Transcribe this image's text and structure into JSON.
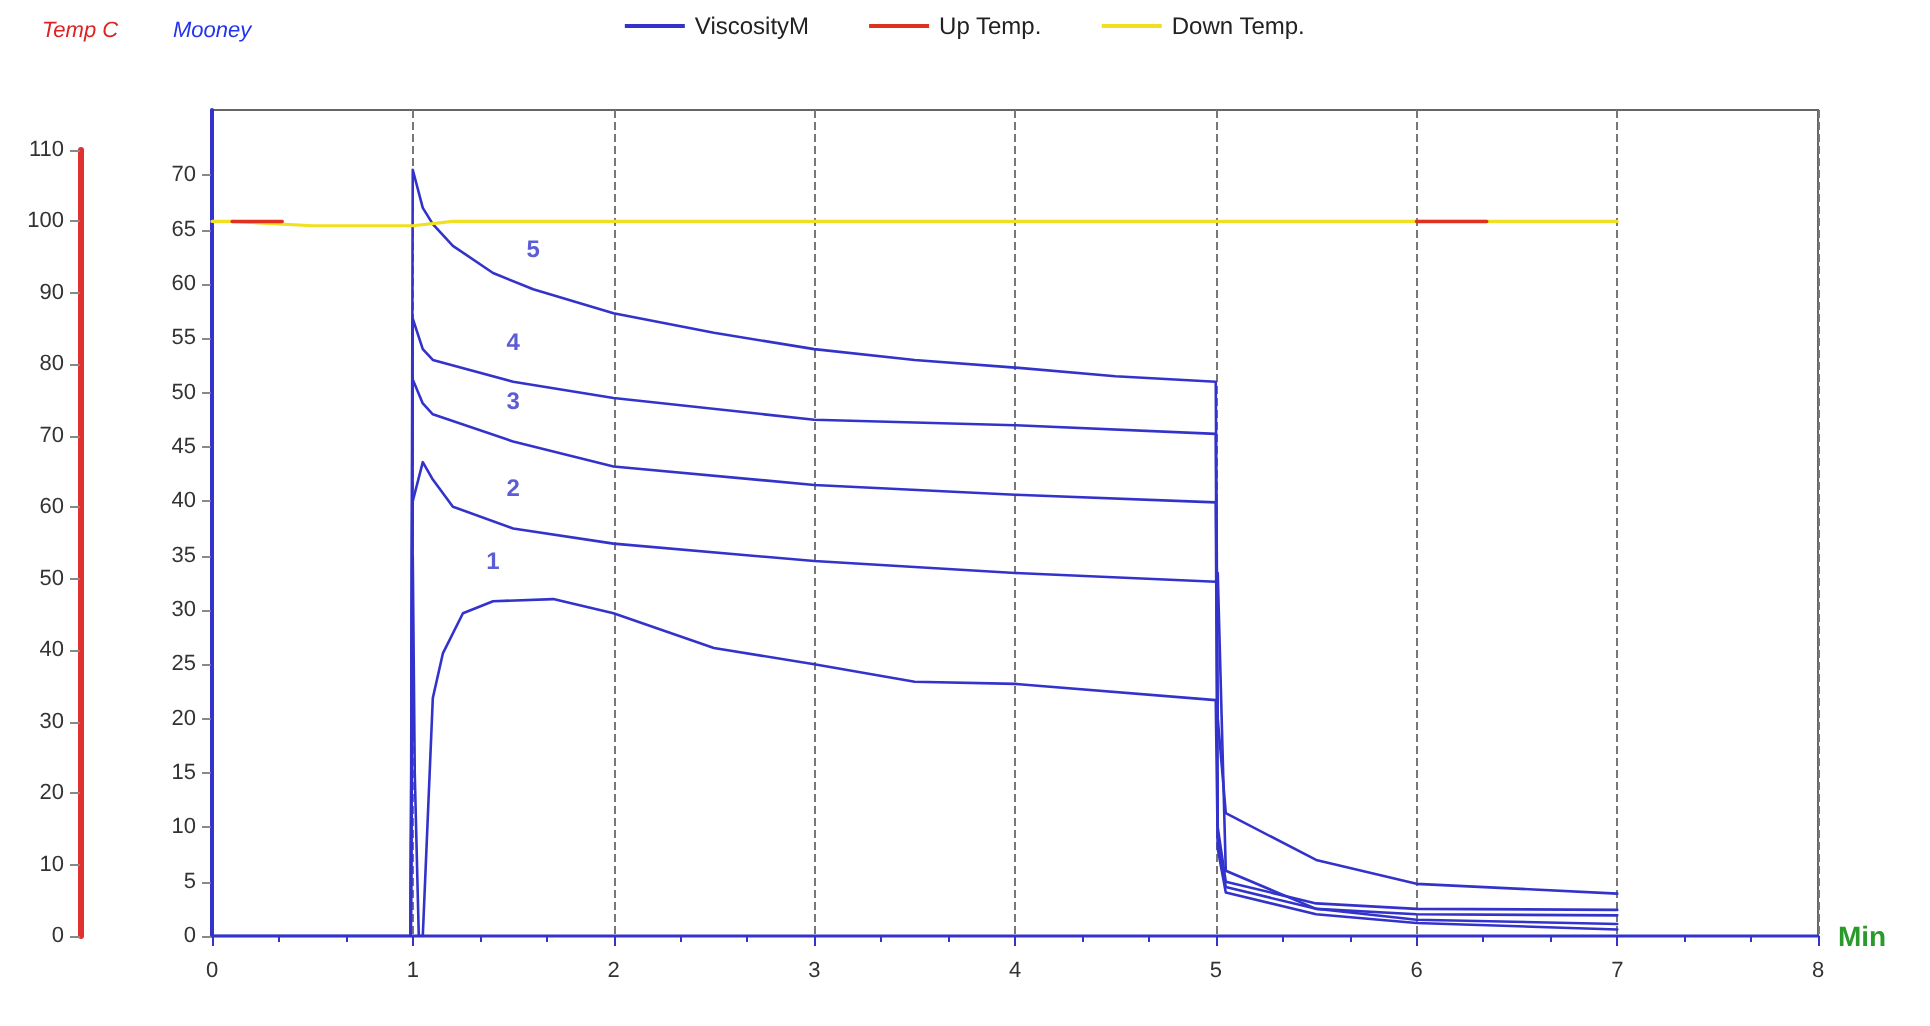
{
  "chart_data": {
    "type": "line",
    "xlabel": "Min",
    "ylabel": "Mooney",
    "y2label": "Temp C",
    "xlim": [
      0,
      8
    ],
    "xticks": [
      0,
      1,
      2,
      3,
      4,
      5,
      6,
      7,
      8
    ],
    "ylim": [
      0,
      76
    ],
    "yticks": [
      0,
      5,
      10,
      15,
      20,
      25,
      30,
      35,
      40,
      45,
      50,
      55,
      60,
      65,
      70
    ],
    "y2lim": [
      0,
      110
    ],
    "y2ticks": [
      0,
      10,
      20,
      30,
      40,
      50,
      60,
      70,
      80,
      90,
      100,
      110
    ],
    "grid": "x",
    "legend": "top",
    "marker": "none",
    "line_style": "solid",
    "annotations": [
      {
        "text": "5",
        "x": 1.6,
        "y": 59.5
      },
      {
        "text": "4",
        "x": 1.5,
        "y": 51
      },
      {
        "text": "3",
        "x": 1.5,
        "y": 45.5
      },
      {
        "text": "2",
        "x": 1.5,
        "y": 37.5
      },
      {
        "text": "1",
        "x": 1.4,
        "y": 30.8
      }
    ],
    "series": [
      {
        "name": "ViscosityM",
        "color": "#3333cc",
        "x": [
          0,
          0,
          0.99,
          1.0,
          1.05,
          1.1,
          1.2,
          1.4,
          1.6,
          2.0,
          2.5,
          3.0,
          3.5,
          4.0,
          4.5,
          5.0,
          5.01,
          5.05,
          5.5,
          6.0,
          7.0
        ],
        "values": [
          73,
          0,
          0,
          70.5,
          67,
          65.5,
          63.5,
          61,
          59.5,
          57.3,
          55.5,
          54,
          53,
          52.3,
          51.5,
          51,
          20,
          11.3,
          7,
          4.8,
          3.9
        ]
      },
      {
        "color": "#3333cc",
        "x": [
          0.99,
          1.0,
          1.05,
          1.1,
          1.5,
          2.0,
          3.0,
          4.0,
          5.0,
          5.01,
          5.05,
          5.5,
          6.0,
          7.0
        ],
        "values": [
          0,
          56.8,
          54,
          53,
          51,
          49.5,
          47.5,
          47,
          46.2,
          10,
          5,
          3,
          2.5,
          2.4
        ]
      },
      {
        "color": "#3333cc",
        "x": [
          0.99,
          1.0,
          1.05,
          1.1,
          1.5,
          2.0,
          3.0,
          4.0,
          5.0,
          5.01,
          5.05,
          5.5,
          6.0,
          7.0
        ],
        "values": [
          0,
          51.2,
          49,
          48,
          45.5,
          43.2,
          41.5,
          40.6,
          39.9,
          9,
          4.5,
          2.5,
          2,
          1.9
        ]
      },
      {
        "color": "#3333cc",
        "x": [
          0.99,
          1.0,
          1.05,
          1.1,
          1.2,
          1.5,
          2.0,
          3.0,
          4.0,
          5.0,
          5.01,
          5.05,
          5.5,
          6.0,
          7.0
        ],
        "values": [
          0,
          40,
          43.6,
          42,
          39.5,
          37.5,
          36.1,
          34.5,
          33.4,
          32.6,
          33.4,
          6,
          2.5,
          1.5,
          1.1
        ]
      },
      {
        "color": "#3333cc",
        "x": [
          0.99,
          1.0,
          1.01,
          1.03,
          1.05,
          1.1,
          1.15,
          1.25,
          1.4,
          1.7,
          2.0,
          2.5,
          3.0,
          3.5,
          4.0,
          5.0,
          5.01,
          5.05,
          5.5,
          6.0,
          7.0
        ],
        "values": [
          0,
          35,
          15,
          0,
          0,
          21.9,
          26,
          29.7,
          30.8,
          31,
          29.7,
          26.5,
          25,
          23.4,
          23.2,
          21.7,
          8,
          4,
          2,
          1.2,
          0.6
        ]
      },
      {
        "name": "Up Temp.",
        "color": "#e03020",
        "axis": "y2",
        "x": [
          0.1,
          0.35,
          0.4,
          6.0,
          6.35
        ],
        "values": [
          100,
          100,
          null,
          100,
          100
        ]
      },
      {
        "name": "Down Temp.",
        "color": "#f0e020",
        "axis": "y2",
        "x": [
          0,
          0.1,
          0.5,
          1.0,
          1.2,
          2.0,
          7.0
        ],
        "values": [
          100,
          100,
          99.4,
          99.4,
          100,
          100,
          100
        ]
      }
    ]
  }
}
